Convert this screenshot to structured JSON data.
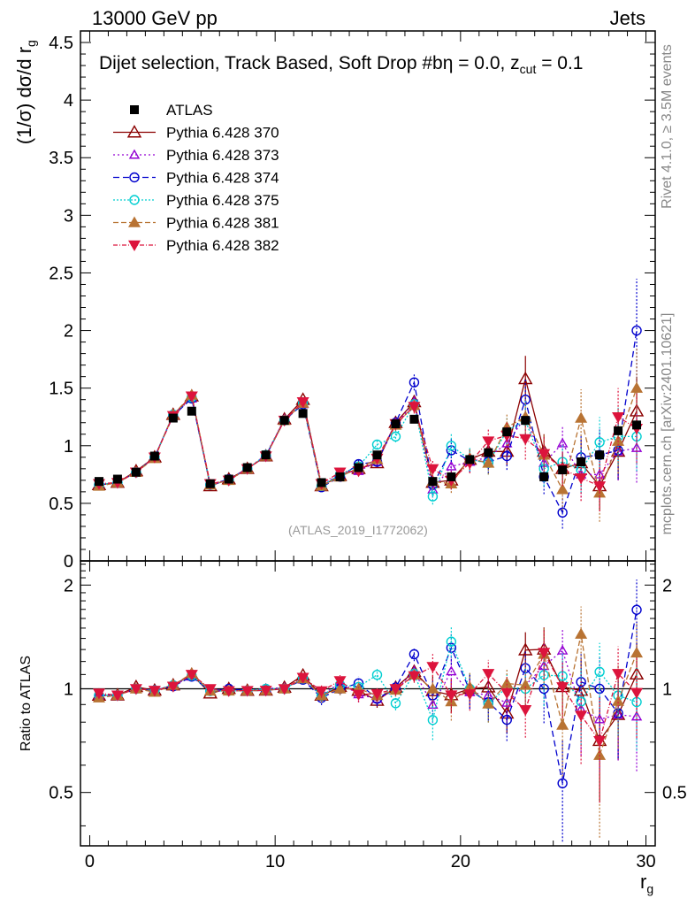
{
  "header": {
    "left": "13000 GeV pp",
    "right": "Jets"
  },
  "side_labels": {
    "rivet": "Rivet 4.1.0, ≥ 3.5M events",
    "source": "mcplots.cern.ch [arXiv:2401.10621]"
  },
  "chart_data": {
    "type": "scatter",
    "title": "Dijet selection, Track Based, Soft Drop #b",
    "title_suffix": "η = 0.0, z",
    "title_sub": "cut",
    "title_tail": " = 0.1",
    "analysis_tag": "(ATLAS_2019_I1772062)",
    "ylabel": "(1/σ) dσ/d r",
    "ylabel_sub": "g",
    "xlabel": "r",
    "xlabel_sub": "g",
    "ratio_ylabel": "Ratio to ATLAS",
    "xlim": [
      -0.5,
      30.5
    ],
    "ylim": [
      0,
      4.6
    ],
    "ratio_ylim": [
      0.35,
      2.35
    ],
    "x_ticks": [
      0,
      10,
      20,
      30
    ],
    "y_ticks": [
      0,
      0.5,
      1,
      1.5,
      2,
      2.5,
      3,
      3.5,
      4,
      4.5
    ],
    "y_tick_labels": [
      "0",
      "0.5",
      "1",
      "1.5",
      "2",
      "2.5",
      "3",
      "3.5",
      "4",
      "4.5"
    ],
    "ratio_ticks": [
      0.5,
      1,
      2
    ],
    "ratio_tick_labels": [
      "0.5",
      "1",
      "2"
    ],
    "x": [
      0.5,
      1.5,
      2.5,
      3.5,
      4.5,
      5.5,
      6.5,
      7.5,
      8.5,
      9.5,
      10.5,
      11.5,
      12.5,
      13.5,
      14.5,
      15.5,
      16.5,
      17.5,
      18.5,
      19.5,
      20.5,
      21.5,
      22.5,
      23.5,
      24.5,
      25.5,
      26.5,
      27.5,
      28.5,
      29.5
    ],
    "data": {
      "name": "ATLAS",
      "values": [
        0.69,
        0.71,
        0.77,
        0.91,
        1.24,
        1.3,
        0.67,
        0.71,
        0.81,
        0.92,
        1.22,
        1.28,
        0.68,
        0.73,
        0.81,
        0.92,
        1.19,
        1.23,
        0.69,
        0.73,
        0.88,
        0.94,
        1.12,
        1.22,
        0.73,
        0.79,
        0.86,
        0.92,
        1.13,
        1.18
      ]
    },
    "series": [
      {
        "name": "Pythia 6.428 370",
        "color": "#8b0000",
        "marker": "triangle-open",
        "dash": "",
        "values": [
          0.66,
          0.68,
          0.78,
          0.9,
          1.27,
          1.43,
          0.65,
          0.71,
          0.8,
          0.91,
          1.23,
          1.4,
          0.65,
          0.74,
          0.8,
          0.85,
          1.2,
          1.38,
          0.68,
          0.7,
          0.88,
          0.95,
          0.95,
          1.58,
          0.95,
          0.8,
          0.85,
          0.65,
          0.95,
          1.3
        ],
        "errors": [
          0.02,
          0.02,
          0.02,
          0.02,
          0.02,
          0.02,
          0.02,
          0.02,
          0.02,
          0.02,
          0.02,
          0.02,
          0.03,
          0.03,
          0.04,
          0.04,
          0.05,
          0.06,
          0.07,
          0.08,
          0.09,
          0.1,
          0.12,
          0.2,
          0.15,
          0.15,
          0.2,
          0.22,
          0.25,
          0.3
        ]
      },
      {
        "name": "Pythia 6.428 373",
        "color": "#9400d3",
        "marker": "triangle-open-small",
        "dash": "2,3",
        "values": [
          0.66,
          0.68,
          0.77,
          0.9,
          1.27,
          1.41,
          0.66,
          0.7,
          0.8,
          0.92,
          1.23,
          1.36,
          0.65,
          0.76,
          0.78,
          0.86,
          1.18,
          1.38,
          0.62,
          0.82,
          0.86,
          0.9,
          1.02,
          1.25,
          0.85,
          1.02,
          0.75,
          0.75,
          0.95,
          0.98
        ],
        "errors": [
          0.02,
          0.02,
          0.02,
          0.02,
          0.02,
          0.02,
          0.02,
          0.02,
          0.02,
          0.02,
          0.02,
          0.02,
          0.03,
          0.03,
          0.04,
          0.04,
          0.05,
          0.06,
          0.07,
          0.08,
          0.09,
          0.1,
          0.12,
          0.18,
          0.15,
          0.15,
          0.2,
          0.22,
          0.25,
          0.3
        ]
      },
      {
        "name": "Pythia 6.428 374",
        "color": "#0000cd",
        "marker": "circle-open",
        "dash": "7,4",
        "values": [
          0.66,
          0.68,
          0.77,
          0.9,
          1.26,
          1.41,
          0.66,
          0.71,
          0.8,
          0.91,
          1.22,
          1.36,
          0.64,
          0.73,
          0.84,
          0.86,
          1.2,
          1.55,
          0.66,
          0.96,
          0.87,
          0.86,
          0.91,
          1.4,
          0.73,
          0.42,
          0.9,
          0.92,
          0.96,
          2.0
        ],
        "errors": [
          0.02,
          0.02,
          0.02,
          0.02,
          0.02,
          0.02,
          0.02,
          0.02,
          0.02,
          0.02,
          0.02,
          0.02,
          0.03,
          0.03,
          0.04,
          0.04,
          0.05,
          0.07,
          0.08,
          0.1,
          0.1,
          0.1,
          0.12,
          0.18,
          0.15,
          0.14,
          0.2,
          0.22,
          0.25,
          0.45
        ]
      },
      {
        "name": "Pythia 6.428 375",
        "color": "#00ced1",
        "marker": "circle-open",
        "dash": "2,2",
        "values": [
          0.66,
          0.68,
          0.77,
          0.9,
          1.27,
          1.42,
          0.66,
          0.7,
          0.8,
          0.92,
          1.22,
          1.37,
          0.65,
          0.75,
          0.82,
          1.01,
          1.08,
          1.36,
          0.56,
          1.0,
          0.88,
          0.85,
          1.13,
          1.22,
          0.8,
          0.86,
          0.79,
          1.03,
          1.08,
          1.08
        ],
        "errors": [
          0.02,
          0.02,
          0.02,
          0.02,
          0.02,
          0.02,
          0.02,
          0.02,
          0.02,
          0.02,
          0.02,
          0.02,
          0.03,
          0.03,
          0.04,
          0.04,
          0.05,
          0.06,
          0.07,
          0.1,
          0.1,
          0.1,
          0.12,
          0.18,
          0.15,
          0.15,
          0.2,
          0.22,
          0.25,
          0.3
        ]
      },
      {
        "name": "Pythia 6.428 381",
        "color": "#b87333",
        "marker": "triangle-up",
        "dash": "6,3",
        "values": [
          0.65,
          0.68,
          0.77,
          0.89,
          1.27,
          1.44,
          0.66,
          0.7,
          0.8,
          0.91,
          1.22,
          1.37,
          0.65,
          0.73,
          0.81,
          0.88,
          1.18,
          1.35,
          0.69,
          0.67,
          0.89,
          0.85,
          1.16,
          1.25,
          0.92,
          0.62,
          1.24,
          0.59,
          1.04,
          1.5
        ],
        "errors": [
          0.02,
          0.02,
          0.02,
          0.02,
          0.02,
          0.02,
          0.02,
          0.02,
          0.02,
          0.02,
          0.02,
          0.02,
          0.03,
          0.03,
          0.04,
          0.04,
          0.05,
          0.06,
          0.07,
          0.08,
          0.09,
          0.1,
          0.12,
          0.2,
          0.18,
          0.18,
          0.25,
          0.25,
          0.28,
          0.35
        ]
      },
      {
        "name": "Pythia 6.428 382",
        "color": "#dc143c",
        "marker": "triangle-down",
        "dash": "5,2,1,2",
        "values": [
          0.67,
          0.68,
          0.77,
          0.9,
          1.26,
          1.43,
          0.67,
          0.7,
          0.8,
          0.91,
          1.22,
          1.38,
          0.67,
          0.77,
          0.78,
          0.89,
          1.19,
          1.34,
          0.8,
          0.7,
          0.85,
          1.04,
          1.09,
          1.06,
          0.93,
          0.8,
          0.72,
          0.65,
          1.25,
          1.15
        ],
        "errors": [
          0.02,
          0.02,
          0.02,
          0.02,
          0.02,
          0.02,
          0.02,
          0.02,
          0.02,
          0.02,
          0.02,
          0.02,
          0.03,
          0.03,
          0.04,
          0.04,
          0.05,
          0.06,
          0.07,
          0.08,
          0.09,
          0.1,
          0.12,
          0.18,
          0.15,
          0.15,
          0.2,
          0.22,
          0.25,
          0.3
        ]
      }
    ]
  }
}
